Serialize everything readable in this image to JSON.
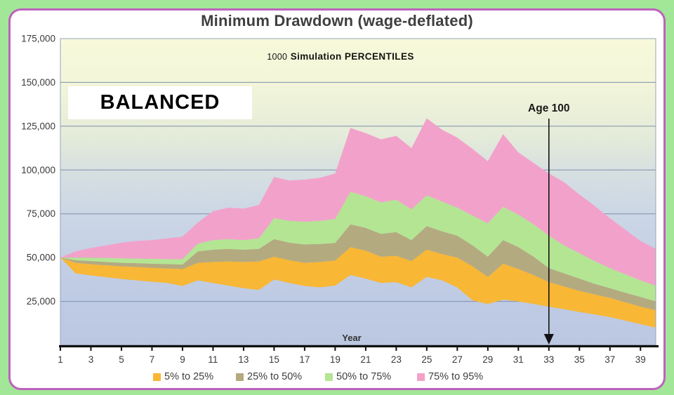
{
  "scenario_label": "BALANCED",
  "colors": {
    "page_bg": "#a2e698",
    "frame_border": "#bd62bd",
    "grid": "#7d90ab",
    "axis": "#111111",
    "wall_border": "#96a5ba",
    "text": "#3d3d3d",
    "wall_gradient": [
      "#f8f9da",
      "#f2f5d9",
      "#e4ebd9",
      "#d5dee1",
      "#cbd6e6",
      "#c0cce4",
      "#bcc8e2"
    ]
  },
  "chart_data": {
    "type": "area",
    "title": "Minimum Drawdown (wage-deflated)",
    "subtitle_prefix": "1000",
    "subtitle_text": "Simulation PERCENTILES",
    "xlabel": "Year",
    "x": [
      1,
      2,
      3,
      4,
      5,
      6,
      7,
      8,
      9,
      10,
      11,
      12,
      13,
      14,
      15,
      16,
      17,
      18,
      19,
      20,
      21,
      22,
      23,
      24,
      25,
      26,
      27,
      28,
      29,
      30,
      31,
      32,
      33,
      34,
      35,
      36,
      37,
      38,
      39,
      40
    ],
    "x_ticks": [
      1,
      3,
      5,
      7,
      9,
      11,
      13,
      15,
      17,
      19,
      21,
      23,
      25,
      27,
      29,
      31,
      33,
      35,
      37,
      39
    ],
    "y_ticks": [
      25000,
      50000,
      75000,
      100000,
      125000,
      150000,
      175000
    ],
    "ylim": [
      0,
      175000
    ],
    "grid": true,
    "legend_position": "bottom",
    "annotation": {
      "label": "Age 100",
      "year": 33
    },
    "series": [
      {
        "name": "5th percentile",
        "values": [
          50000,
          41000,
          39800,
          38800,
          37800,
          37000,
          36200,
          35500,
          33800,
          37000,
          35500,
          34000,
          32500,
          31500,
          37500,
          35500,
          33800,
          33000,
          34000,
          40000,
          38000,
          35500,
          36000,
          33000,
          39000,
          37000,
          33000,
          25500,
          23500,
          26000,
          25000,
          23500,
          22000,
          20500,
          19000,
          17500,
          16000,
          14000,
          12000,
          10000
        ]
      },
      {
        "name": "25th percentile",
        "values": [
          50000,
          47000,
          46200,
          45600,
          45000,
          44600,
          44200,
          43800,
          43400,
          47000,
          47500,
          47800,
          47500,
          47800,
          50500,
          48500,
          47000,
          47500,
          48300,
          56000,
          54000,
          50500,
          51000,
          48000,
          54500,
          52000,
          50000,
          45000,
          39000,
          46500,
          43500,
          40000,
          36000,
          33500,
          31000,
          29000,
          27000,
          24500,
          22000,
          20000
        ]
      },
      {
        "name": "50th percentile",
        "values": [
          50000,
          48500,
          48000,
          47500,
          47000,
          46800,
          46500,
          46300,
          46000,
          53500,
          54500,
          55000,
          54500,
          55000,
          60500,
          58500,
          57500,
          57800,
          58300,
          69000,
          67000,
          63500,
          64500,
          60000,
          68000,
          65000,
          62500,
          57000,
          50500,
          60000,
          56000,
          50500,
          44000,
          41000,
          38000,
          35000,
          32500,
          30000,
          27500,
          25000
        ]
      },
      {
        "name": "75th percentile",
        "values": [
          50000,
          50000,
          50000,
          49800,
          49600,
          49400,
          49300,
          49100,
          49000,
          58000,
          60000,
          60500,
          60000,
          61000,
          72500,
          71000,
          70500,
          71000,
          72000,
          87500,
          85000,
          81500,
          83000,
          77500,
          85500,
          82000,
          78500,
          74000,
          69500,
          79000,
          74500,
          69000,
          62500,
          57000,
          52500,
          48000,
          44000,
          40500,
          37000,
          34000
        ]
      },
      {
        "name": "95th percentile",
        "values": [
          50000,
          53500,
          55500,
          57000,
          58500,
          59500,
          60000,
          61000,
          62000,
          70000,
          76500,
          78500,
          78000,
          80000,
          96000,
          94000,
          94500,
          95500,
          98000,
          124000,
          121000,
          117500,
          119500,
          112500,
          129500,
          123000,
          118500,
          112000,
          105000,
          120500,
          110000,
          104000,
          98000,
          93000,
          86000,
          79500,
          72500,
          66000,
          59500,
          55000
        ]
      }
    ],
    "bands": [
      {
        "label": "5% to 25%",
        "lower": 0,
        "upper": 1,
        "color": "#f8b735"
      },
      {
        "label": "25% to 50%",
        "lower": 1,
        "upper": 2,
        "color": "#b4aa80"
      },
      {
        "label": "50% to 75%",
        "lower": 2,
        "upper": 3,
        "color": "#b4e593"
      },
      {
        "label": "75% to 95%",
        "lower": 3,
        "upper": 4,
        "color": "#f2a2ca"
      }
    ]
  }
}
